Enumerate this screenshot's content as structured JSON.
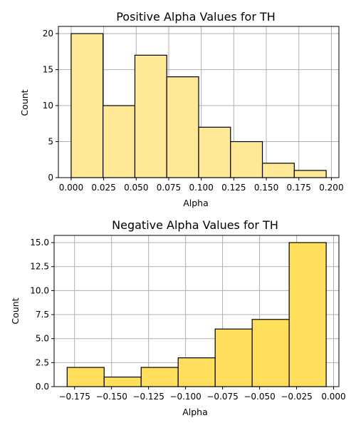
{
  "chart_data": [
    {
      "type": "bar",
      "title": "Positive Alpha Values for TH",
      "xlabel": "Alpha",
      "ylabel": "Count",
      "bin_edges": [
        0.0,
        0.0245,
        0.049,
        0.0735,
        0.098,
        0.1225,
        0.147,
        0.1715,
        0.196
      ],
      "values": [
        20,
        10,
        17,
        14,
        7,
        5,
        2,
        1
      ],
      "xlim": [
        -0.0098,
        0.2058
      ],
      "ylim": [
        0,
        21
      ],
      "xticks": [
        0.0,
        0.025,
        0.05,
        0.075,
        0.1,
        0.125,
        0.15,
        0.175,
        0.2
      ],
      "xtick_labels": [
        "0.000",
        "0.025",
        "0.050",
        "0.075",
        "0.100",
        "0.125",
        "0.150",
        "0.175",
        "0.200"
      ],
      "yticks": [
        0,
        5,
        10,
        15,
        20
      ],
      "ytick_labels": [
        "0",
        "5",
        "10",
        "15",
        "20"
      ],
      "grid": true,
      "bar_color": "#ffe896",
      "edge_color": "#000000"
    },
    {
      "type": "bar",
      "title": "Negative Alpha Values for TH",
      "xlabel": "Alpha",
      "ylabel": "Count",
      "bin_edges": [
        -0.18,
        -0.155,
        -0.13,
        -0.105,
        -0.08,
        -0.055,
        -0.03,
        -0.005
      ],
      "values": [
        2,
        1,
        2,
        3,
        6,
        7,
        15
      ],
      "xlim": [
        -0.1888,
        0.0036
      ],
      "ylim": [
        0,
        15.75
      ],
      "xticks": [
        -0.175,
        -0.15,
        -0.125,
        -0.1,
        -0.075,
        -0.05,
        -0.025,
        0.0
      ],
      "xtick_labels": [
        "−0.175",
        "−0.150",
        "−0.125",
        "−0.100",
        "−0.075",
        "−0.050",
        "−0.025",
        "0.000"
      ],
      "yticks": [
        0,
        2.5,
        5,
        7.5,
        10,
        12.5,
        15
      ],
      "ytick_labels": [
        "0.0",
        "2.5",
        "5.0",
        "7.5",
        "10.0",
        "12.5",
        "15.0"
      ],
      "grid": true,
      "bar_color": "#ffdf5c",
      "edge_color": "#000000"
    }
  ]
}
